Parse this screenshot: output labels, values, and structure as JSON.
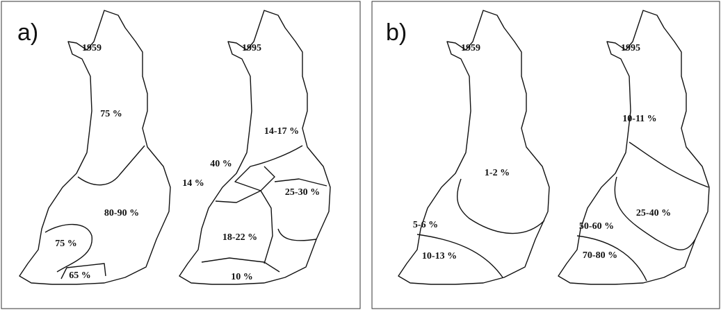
{
  "panels": [
    {
      "label": "a)",
      "maps": [
        {
          "year": "1959",
          "regions": [
            "75 %",
            "80-90 %",
            "75 %",
            "65 %"
          ]
        },
        {
          "year": "1995",
          "regions": [
            "14-17 %",
            "40 %",
            "14 %",
            "25-30 %",
            "18-22 %",
            "10 %"
          ]
        }
      ]
    },
    {
      "label": "b)",
      "maps": [
        {
          "year": "1959",
          "regions": [
            "1-2 %",
            "5-6 %",
            "10-13 %"
          ]
        },
        {
          "year": "1995",
          "regions": [
            "10-11 %",
            "25-40 %",
            "50-60 %",
            "70-80 %"
          ]
        }
      ]
    }
  ]
}
